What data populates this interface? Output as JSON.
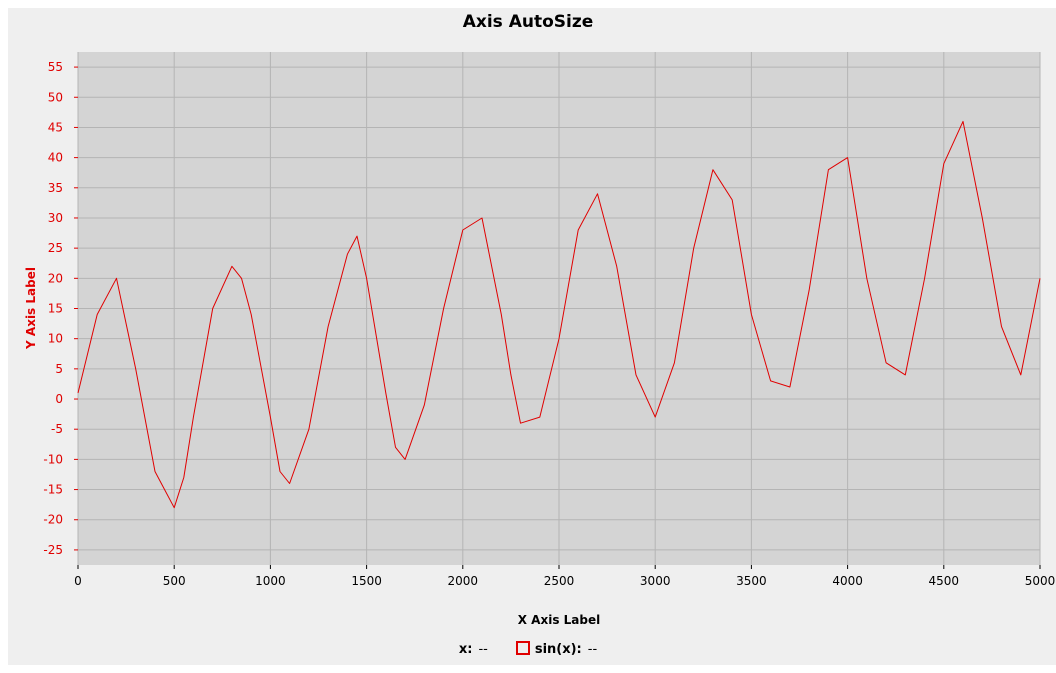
{
  "chart_data": {
    "type": "line",
    "title": "Axis AutoSize",
    "xlabel": "X Axis Label",
    "ylabel": "Y Axis Label",
    "xlim": [
      0,
      5000
    ],
    "ylim": [
      -27.5,
      57.5
    ],
    "xticks": [
      0,
      500,
      1000,
      1500,
      2000,
      2500,
      3000,
      3500,
      4000,
      4500,
      5000
    ],
    "yticks": [
      -25,
      -20,
      -15,
      -10,
      -5,
      0,
      5,
      10,
      15,
      20,
      25,
      30,
      35,
      40,
      45,
      50,
      55
    ],
    "grid": true,
    "legend_position": "bottom",
    "series": [
      {
        "name": "sin(x):",
        "color": "#e00000",
        "x": [
          0,
          100,
          200,
          300,
          400,
          450,
          500,
          550,
          600,
          700,
          800,
          850,
          900,
          1000,
          1050,
          1100,
          1200,
          1300,
          1400,
          1450,
          1500,
          1600,
          1650,
          1700,
          1800,
          1900,
          2000,
          2100,
          2200,
          2250,
          2300,
          2400,
          2500,
          2600,
          2700,
          2800,
          2900,
          3000,
          3100,
          3200,
          3300,
          3400,
          3500,
          3600,
          3700,
          3800,
          3900,
          4000,
          4100,
          4200,
          4300,
          4400,
          4500,
          4600,
          4700,
          4800,
          4900,
          5000
        ],
        "y": [
          1,
          14,
          20,
          5,
          -12,
          -15,
          -18,
          -13,
          -3,
          15,
          22,
          20,
          14,
          -3,
          -12,
          -14,
          -5,
          12,
          24,
          27,
          20,
          1,
          -8,
          -10,
          -1,
          15,
          28,
          30,
          14,
          4,
          -4,
          -3,
          10,
          28,
          34,
          22,
          4,
          -3,
          6,
          25,
          38,
          33,
          14,
          3,
          2,
          18,
          38,
          40,
          20,
          6,
          4,
          20,
          39,
          46,
          30,
          12,
          4,
          20
        ]
      }
    ]
  },
  "legend": {
    "x_label": "x:",
    "x_value": "--",
    "series_label": "sin(x):",
    "series_value": "--"
  }
}
